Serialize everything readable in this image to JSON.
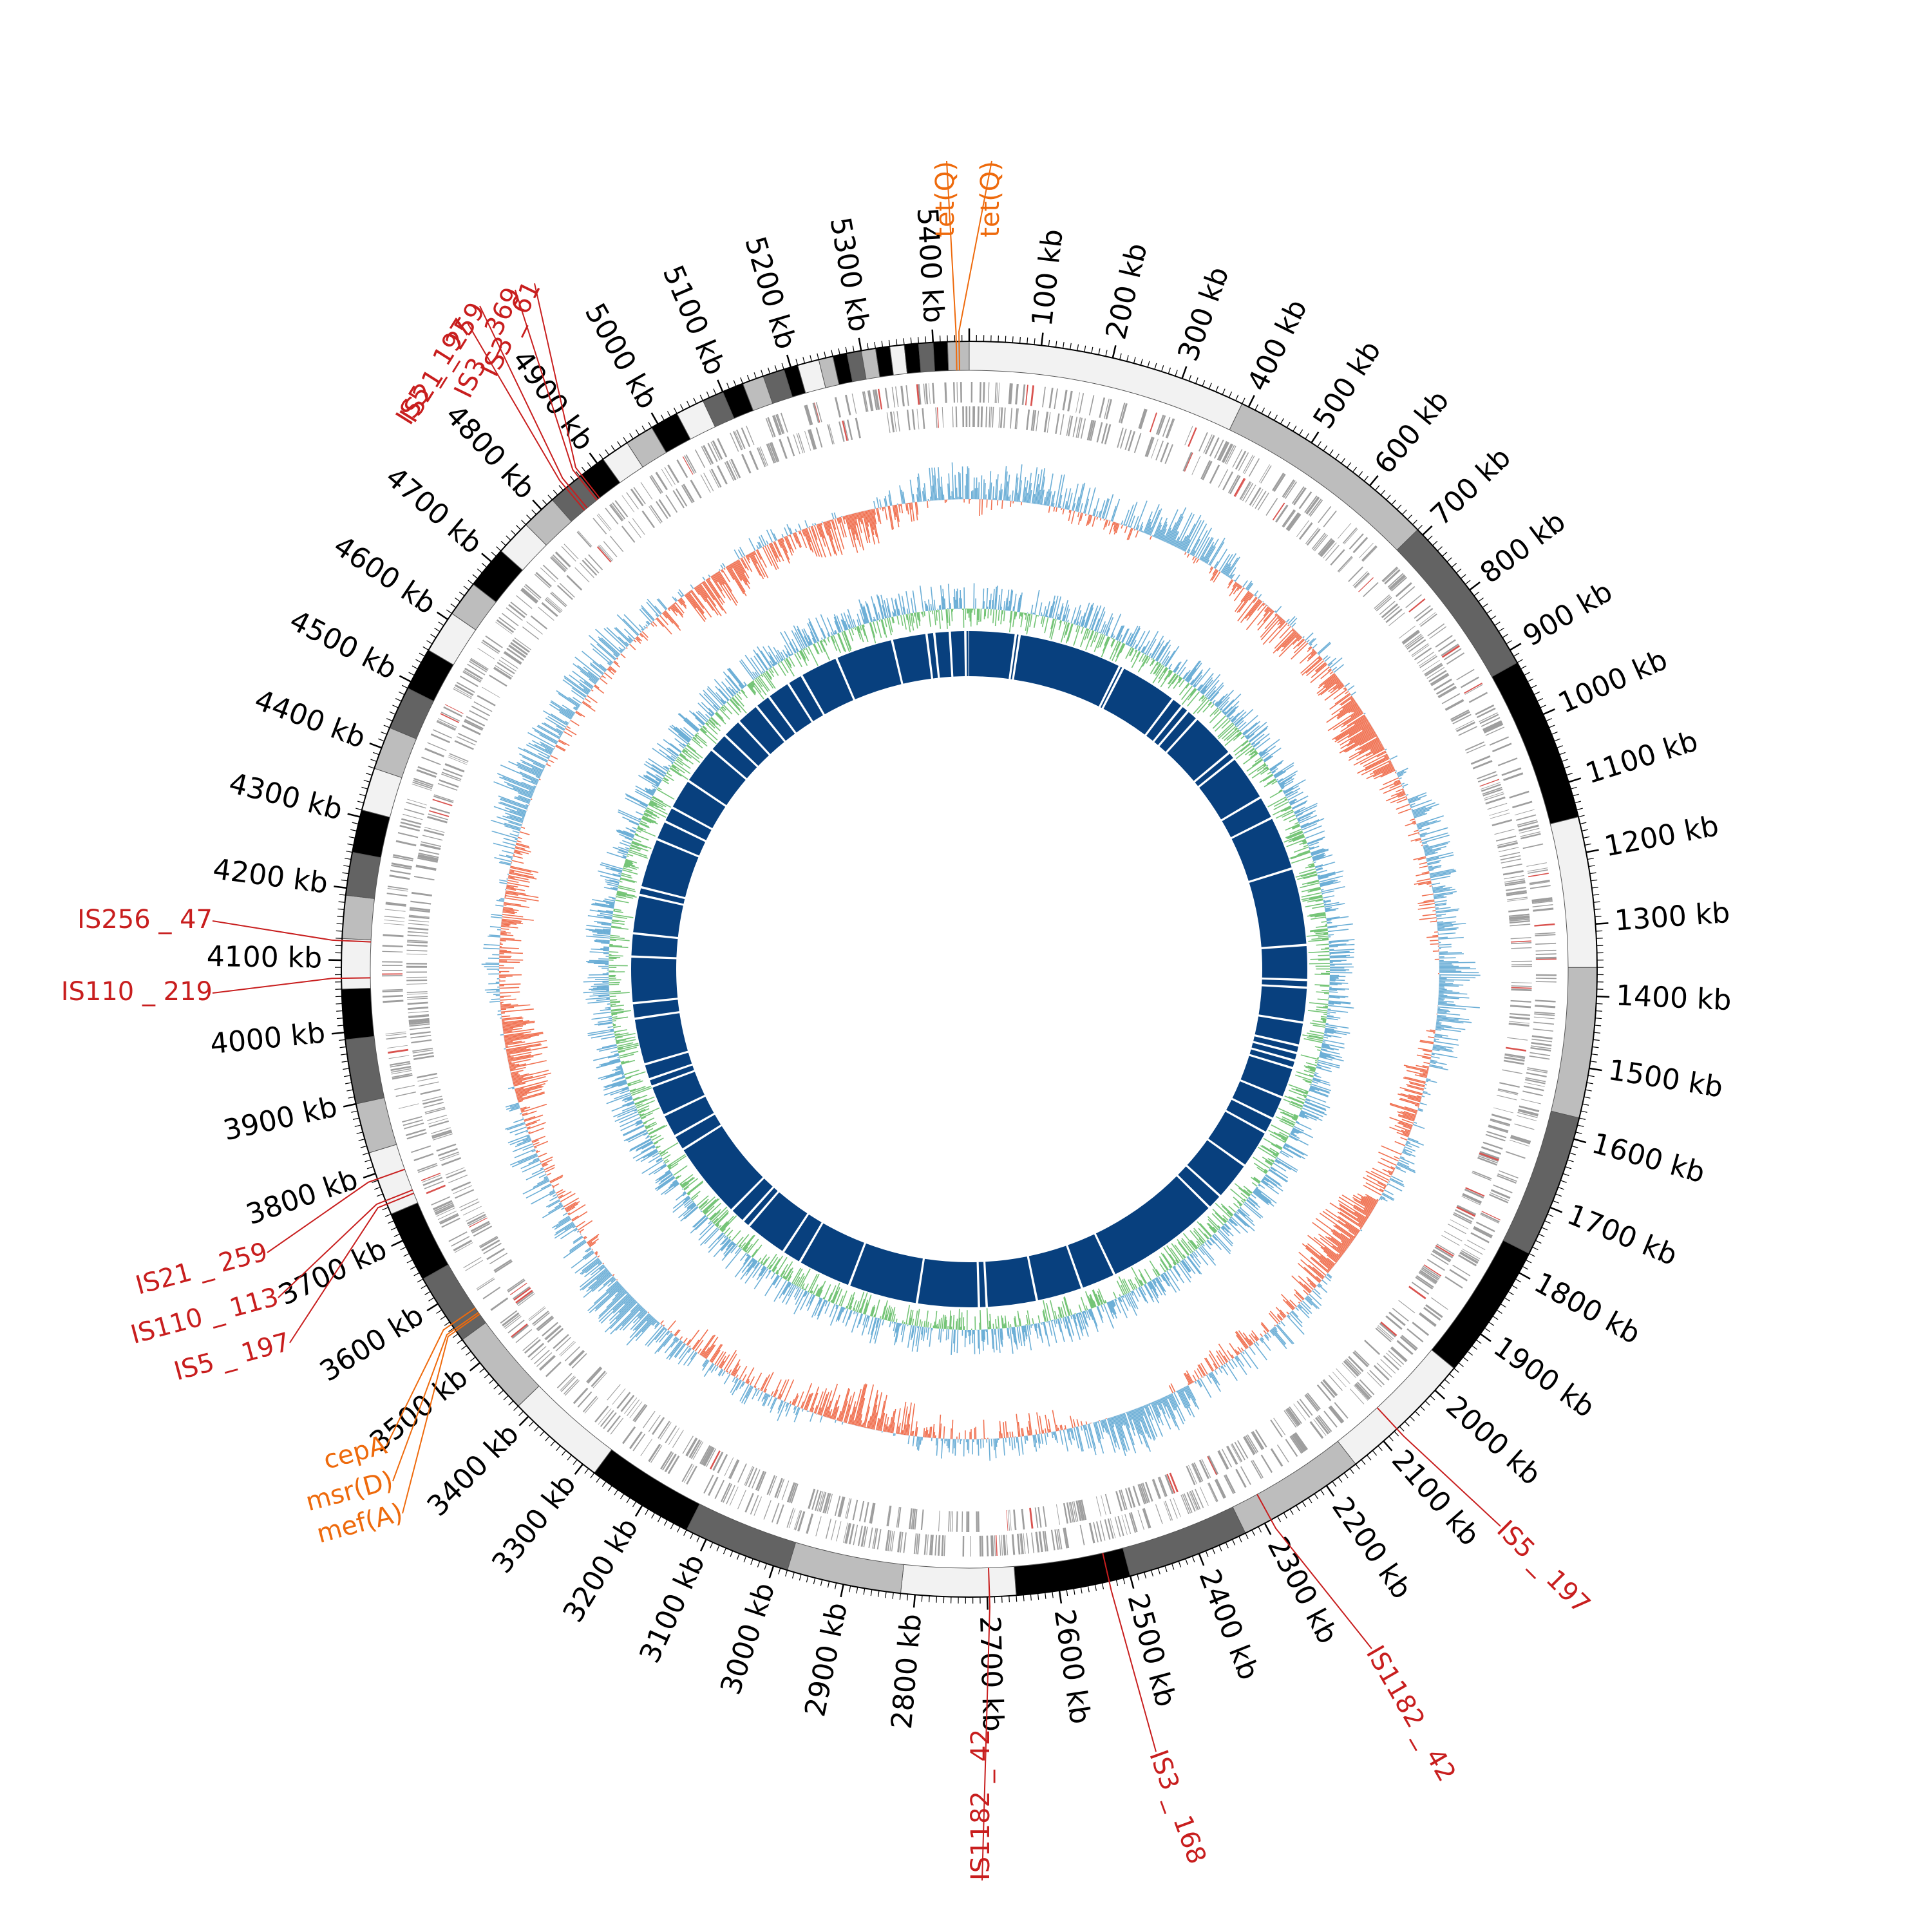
{
  "figure": {
    "type": "circular-genome-map",
    "genome_size_kb": 5450,
    "tick_unit": "kb"
  },
  "ticks": [
    {
      "kb": 100,
      "label": "100 kb"
    },
    {
      "kb": 200,
      "label": "200 kb"
    },
    {
      "kb": 300,
      "label": "300 kb"
    },
    {
      "kb": 400,
      "label": "400 kb"
    },
    {
      "kb": 500,
      "label": "500 kb"
    },
    {
      "kb": 600,
      "label": "600 kb"
    },
    {
      "kb": 700,
      "label": "700 kb"
    },
    {
      "kb": 800,
      "label": "800 kb"
    },
    {
      "kb": 900,
      "label": "900 kb"
    },
    {
      "kb": 1000,
      "label": "1000 kb"
    },
    {
      "kb": 1100,
      "label": "1100 kb"
    },
    {
      "kb": 1200,
      "label": "1200 kb"
    },
    {
      "kb": 1300,
      "label": "1300 kb"
    },
    {
      "kb": 1400,
      "label": "1400 kb"
    },
    {
      "kb": 1500,
      "label": "1500 kb"
    },
    {
      "kb": 1600,
      "label": "1600 kb"
    },
    {
      "kb": 1700,
      "label": "1700 kb"
    },
    {
      "kb": 1800,
      "label": "1800 kb"
    },
    {
      "kb": 1900,
      "label": "1900 kb"
    },
    {
      "kb": 2000,
      "label": "2000 kb"
    },
    {
      "kb": 2100,
      "label": "2100 kb"
    },
    {
      "kb": 2200,
      "label": "2200 kb"
    },
    {
      "kb": 2300,
      "label": "2300 kb"
    },
    {
      "kb": 2400,
      "label": "2400 kb"
    },
    {
      "kb": 2500,
      "label": "2500 kb"
    },
    {
      "kb": 2600,
      "label": "2600 kb"
    },
    {
      "kb": 2700,
      "label": "2700 kb"
    },
    {
      "kb": 2800,
      "label": "2800 kb"
    },
    {
      "kb": 2900,
      "label": "2900 kb"
    },
    {
      "kb": 3000,
      "label": "3000 kb"
    },
    {
      "kb": 3100,
      "label": "3100 kb"
    },
    {
      "kb": 3200,
      "label": "3200 kb"
    },
    {
      "kb": 3300,
      "label": "3300 kb"
    },
    {
      "kb": 3400,
      "label": "3400 kb"
    },
    {
      "kb": 3500,
      "label": "3500 kb"
    },
    {
      "kb": 3600,
      "label": "3600 kb"
    },
    {
      "kb": 3700,
      "label": "3700 kb"
    },
    {
      "kb": 3800,
      "label": "3800 kb"
    },
    {
      "kb": 3900,
      "label": "3900 kb"
    },
    {
      "kb": 4000,
      "label": "4000 kb"
    },
    {
      "kb": 4100,
      "label": "4100 kb"
    },
    {
      "kb": 4200,
      "label": "4200 kb"
    },
    {
      "kb": 4300,
      "label": "4300 kb"
    },
    {
      "kb": 4400,
      "label": "4400 kb"
    },
    {
      "kb": 4500,
      "label": "4500 kb"
    },
    {
      "kb": 4600,
      "label": "4600 kb"
    },
    {
      "kb": 4700,
      "label": "4700 kb"
    },
    {
      "kb": 4800,
      "label": "4800 kb"
    },
    {
      "kb": 4900,
      "label": "4900 kb"
    },
    {
      "kb": 5000,
      "label": "5000 kb"
    },
    {
      "kb": 5100,
      "label": "5100 kb"
    },
    {
      "kb": 5200,
      "label": "5200 kb"
    },
    {
      "kb": 5300,
      "label": "5300 kb"
    },
    {
      "kb": 5400,
      "label": "5400 kb"
    }
  ],
  "contig_blocks": [
    {
      "start": 0,
      "end": 390,
      "shade": "#f2f2f2"
    },
    {
      "start": 390,
      "end": 690,
      "shade": "#bdbdbd"
    },
    {
      "start": 690,
      "end": 920,
      "shade": "#636363"
    },
    {
      "start": 920,
      "end": 1150,
      "shade": "#000000"
    },
    {
      "start": 1150,
      "end": 1360,
      "shade": "#f2f2f2"
    },
    {
      "start": 1360,
      "end": 1570,
      "shade": "#bdbdbd"
    },
    {
      "start": 1570,
      "end": 1770,
      "shade": "#636363"
    },
    {
      "start": 1770,
      "end": 1960,
      "shade": "#000000"
    },
    {
      "start": 1960,
      "end": 2150,
      "shade": "#f2f2f2"
    },
    {
      "start": 2150,
      "end": 2330,
      "shade": "#bdbdbd"
    },
    {
      "start": 2330,
      "end": 2500,
      "shade": "#636363"
    },
    {
      "start": 2500,
      "end": 2660,
      "shade": "#000000"
    },
    {
      "start": 2660,
      "end": 2820,
      "shade": "#f2f2f2"
    },
    {
      "start": 2820,
      "end": 2980,
      "shade": "#bdbdbd"
    },
    {
      "start": 2980,
      "end": 3130,
      "shade": "#636363"
    },
    {
      "start": 3130,
      "end": 3280,
      "shade": "#000000"
    },
    {
      "start": 3280,
      "end": 3420,
      "shade": "#f2f2f2"
    },
    {
      "start": 3420,
      "end": 3540,
      "shade": "#bdbdbd"
    },
    {
      "start": 3540,
      "end": 3640,
      "shade": "#636363"
    },
    {
      "start": 3640,
      "end": 3740,
      "shade": "#000000"
    },
    {
      "start": 3740,
      "end": 3830,
      "shade": "#f2f2f2"
    },
    {
      "start": 3830,
      "end": 3900,
      "shade": "#bdbdbd"
    },
    {
      "start": 3900,
      "end": 3990,
      "shade": "#636363"
    },
    {
      "start": 3990,
      "end": 4060,
      "shade": "#000000"
    },
    {
      "start": 4060,
      "end": 4130,
      "shade": "#f2f2f2"
    },
    {
      "start": 4130,
      "end": 4190,
      "shade": "#bdbdbd"
    },
    {
      "start": 4190,
      "end": 4250,
      "shade": "#636363"
    },
    {
      "start": 4250,
      "end": 4310,
      "shade": "#000000"
    },
    {
      "start": 4310,
      "end": 4370,
      "shade": "#f2f2f2"
    },
    {
      "start": 4370,
      "end": 4430,
      "shade": "#bdbdbd"
    },
    {
      "start": 4430,
      "end": 4490,
      "shade": "#636363"
    },
    {
      "start": 4490,
      "end": 4550,
      "shade": "#000000"
    },
    {
      "start": 4550,
      "end": 4610,
      "shade": "#f2f2f2"
    },
    {
      "start": 4610,
      "end": 4660,
      "shade": "#bdbdbd"
    },
    {
      "start": 4660,
      "end": 4720,
      "shade": "#000000"
    },
    {
      "start": 4720,
      "end": 4770,
      "shade": "#f2f2f2"
    },
    {
      "start": 4770,
      "end": 4820,
      "shade": "#bdbdbd"
    },
    {
      "start": 4820,
      "end": 4870,
      "shade": "#636363"
    },
    {
      "start": 4870,
      "end": 4910,
      "shade": "#000000"
    },
    {
      "start": 4910,
      "end": 4950,
      "shade": "#f2f2f2"
    },
    {
      "start": 4950,
      "end": 4990,
      "shade": "#bdbdbd"
    },
    {
      "start": 4990,
      "end": 5030,
      "shade": "#000000"
    },
    {
      "start": 5030,
      "end": 5070,
      "shade": "#f2f2f2"
    },
    {
      "start": 5070,
      "end": 5100,
      "shade": "#636363"
    },
    {
      "start": 5100,
      "end": 5130,
      "shade": "#000000"
    },
    {
      "start": 5130,
      "end": 5160,
      "shade": "#bdbdbd"
    },
    {
      "start": 5160,
      "end": 5190,
      "shade": "#636363"
    },
    {
      "start": 5190,
      "end": 5210,
      "shade": "#000000"
    },
    {
      "start": 5210,
      "end": 5240,
      "shade": "#f2f2f2"
    },
    {
      "start": 5240,
      "end": 5260,
      "shade": "#bdbdbd"
    },
    {
      "start": 5260,
      "end": 5280,
      "shade": "#000000"
    },
    {
      "start": 5280,
      "end": 5300,
      "shade": "#636363"
    },
    {
      "start": 5300,
      "end": 5320,
      "shade": "#bdbdbd"
    },
    {
      "start": 5320,
      "end": 5340,
      "shade": "#000000"
    },
    {
      "start": 5340,
      "end": 5360,
      "shade": "#f2f2f2"
    },
    {
      "start": 5360,
      "end": 5380,
      "shade": "#000000"
    },
    {
      "start": 5380,
      "end": 5400,
      "shade": "#636363"
    },
    {
      "start": 5400,
      "end": 5420,
      "shade": "#000000"
    },
    {
      "start": 5420,
      "end": 5450,
      "shade": "#bdbdbd"
    }
  ],
  "annotations": [
    {
      "label": "tet(Q)",
      "kb": 5432,
      "category": "resistance_gene"
    },
    {
      "label": "tet(Q)",
      "kb": 5436,
      "category": "resistance_gene"
    },
    {
      "label": "IS3 _ 61",
      "kb": 4873,
      "category": "insertion_sequence"
    },
    {
      "label": "IS3 _ 369",
      "kb": 4868,
      "category": "insertion_sequence"
    },
    {
      "label": "IS21 _ 259",
      "kb": 4850,
      "category": "insertion_sequence"
    },
    {
      "label": "IS5 _ 197",
      "kb": 4845,
      "category": "insertion_sequence"
    },
    {
      "label": "IS256 _ 47",
      "kb": 4127,
      "category": "insertion_sequence"
    },
    {
      "label": "IS110 _ 219",
      "kb": 4075,
      "category": "insertion_sequence"
    },
    {
      "label": "IS21 _ 259",
      "kb": 3792,
      "category": "insertion_sequence"
    },
    {
      "label": "IS110 _ 113",
      "kb": 3760,
      "category": "insertion_sequence"
    },
    {
      "label": "IS5 _ 197",
      "kb": 3755,
      "category": "insertion_sequence"
    },
    {
      "label": "cepA",
      "kb": 3566,
      "category": "resistance_gene"
    },
    {
      "label": "msr(D)",
      "kb": 3558,
      "category": "resistance_gene"
    },
    {
      "label": "mef(A)",
      "kb": 3555,
      "category": "resistance_gene"
    },
    {
      "label": "IS1182 _ 42",
      "kb": 2697,
      "category": "insertion_sequence"
    },
    {
      "label": "IS3 _ 168",
      "kb": 2530,
      "category": "insertion_sequence"
    },
    {
      "label": "IS1182 _ 42",
      "kb": 2290,
      "category": "insertion_sequence"
    },
    {
      "label": "IS5 _ 197",
      "kb": 2075,
      "category": "insertion_sequence"
    }
  ],
  "legend_colors": {
    "resistance_gene": "#ee6a0c",
    "insertion_sequence": "#c81e1e",
    "cds_track": "#9e9e9e",
    "gc_positive": "#6baed6",
    "gc_negative": "#f07050",
    "skew_positive": "#6baed6",
    "skew_negative": "#74c476",
    "homology_blocks": "#08407e"
  },
  "homology_gaps_kb": [
    120,
    130,
    400,
    410,
    560,
    590,
    610,
    640,
    760,
    780,
    900,
    960,
    1100,
    1300,
    1390,
    1410,
    1500,
    1560,
    1580,
    1600,
    1620,
    1700,
    1760,
    1800,
    1900,
    2000,
    2040,
    2340,
    2430,
    2550,
    2680,
    2700,
    2860,
    3040,
    3180,
    3230,
    3340,
    3360,
    3400,
    3600,
    3640,
    3700,
    3780,
    3800,
    3840,
    3960,
    4000,
    4120,
    4180,
    4280,
    4300,
    4430,
    4480,
    4520,
    4600,
    4700,
    4750,
    4800,
    4860,
    4900,
    4960,
    5000,
    5100,
    5250,
    5340,
    5360,
    5400,
    5440
  ]
}
